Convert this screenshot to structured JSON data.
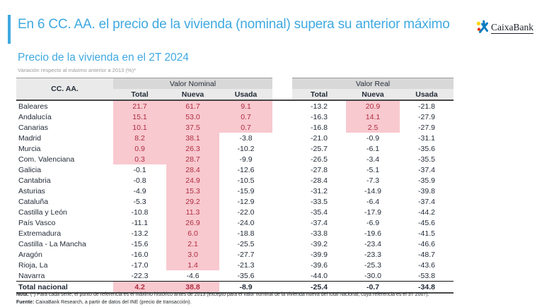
{
  "header": {
    "title": "En 6 CC. AA. el precio de la vivienda (nominal) supera su anterior máximo",
    "brand": "CaixaBank"
  },
  "subtitle": "Precio de la vivienda en el 2T 2024",
  "caption": "Variación respecto al máximo anterior a 2013 (%)*",
  "table": {
    "corner_header": "CC. AA.",
    "groups": [
      {
        "label": "Valor Nominal",
        "columns": [
          "Total",
          "Nueva",
          "Usada"
        ]
      },
      {
        "label": "Valor Real",
        "columns": [
          "Total",
          "Nueva",
          "Usada"
        ]
      }
    ],
    "rows": [
      {
        "label": "Baleares",
        "nominal": [
          "21.7",
          "61.7",
          "9.1"
        ],
        "real": [
          "-13.2",
          "20.9",
          "-21.8"
        ]
      },
      {
        "label": "Andalucía",
        "nominal": [
          "15.1",
          "53.0",
          "0.7"
        ],
        "real": [
          "-16.3",
          "14.1",
          "-27.9"
        ]
      },
      {
        "label": "Canarias",
        "nominal": [
          "10.1",
          "37.5",
          "0.7"
        ],
        "real": [
          "-16.8",
          "2.5",
          "-27.9"
        ]
      },
      {
        "label": "Madrid",
        "nominal": [
          "8.2",
          "38.1",
          "-3.8"
        ],
        "real": [
          "-21.0",
          "-0.9",
          "-31.1"
        ]
      },
      {
        "label": "Murcia",
        "nominal": [
          "0.9",
          "26.3",
          "-10.2"
        ],
        "real": [
          "-25.7",
          "-6.1",
          "-35.6"
        ]
      },
      {
        "label": "Com. Valenciana",
        "nominal": [
          "0.3",
          "28.7",
          "-9.9"
        ],
        "real": [
          "-26.5",
          "-3.4",
          "-35.5"
        ]
      },
      {
        "label": "Galicia",
        "nominal": [
          "-0.1",
          "28.4",
          "-12.6"
        ],
        "real": [
          "-27.8",
          "-5.1",
          "-37.4"
        ]
      },
      {
        "label": "Cantabria",
        "nominal": [
          "-0.8",
          "24.9",
          "-10.5"
        ],
        "real": [
          "-28.4",
          "-7.3",
          "-35.9"
        ]
      },
      {
        "label": "Asturias",
        "nominal": [
          "-4.9",
          "15.3",
          "-15.9"
        ],
        "real": [
          "-31.2",
          "-14.9",
          "-39.8"
        ]
      },
      {
        "label": "Cataluña",
        "nominal": [
          "-5.3",
          "29.2",
          "-12.9"
        ],
        "real": [
          "-33.5",
          "-6.4",
          "-37.4"
        ]
      },
      {
        "label": "Castilla y León",
        "nominal": [
          "-10.8",
          "11.3",
          "-22.0"
        ],
        "real": [
          "-35.4",
          "-17.9",
          "-44.2"
        ]
      },
      {
        "label": "País Vasco",
        "nominal": [
          "-11.1",
          "26.9",
          "-24.0"
        ],
        "real": [
          "-37.4",
          "-6.9",
          "-45.6"
        ]
      },
      {
        "label": "Extremadura",
        "nominal": [
          "-13.2",
          "6.0",
          "-18.8"
        ],
        "real": [
          "-33.8",
          "-19.6",
          "-41.5"
        ]
      },
      {
        "label": "Castilla - La Mancha",
        "nominal": [
          "-15.6",
          "2.1",
          "-25.5"
        ],
        "real": [
          "-39.2",
          "-23.4",
          "-46.6"
        ]
      },
      {
        "label": "Aragón",
        "nominal": [
          "-16.0",
          "3.0",
          "-27.7"
        ],
        "real": [
          "-39.9",
          "-23.3",
          "-48.7"
        ]
      },
      {
        "label": "Rioja, La",
        "nominal": [
          "-17.0",
          "1.4",
          "-21.3"
        ],
        "real": [
          "-39.6",
          "-25.3",
          "-43.6"
        ]
      },
      {
        "label": "Navarra",
        "nominal": [
          "-22.3",
          "-4.6",
          "-35.6"
        ],
        "real": [
          "-44.0",
          "-30.0",
          "-53.8"
        ]
      }
    ],
    "total_row": {
      "label": "Total nacional",
      "nominal": [
        "4.2",
        "38.8",
        "-8.9"
      ],
      "real": [
        "-25.4",
        "-0.7",
        "-34.8"
      ]
    },
    "highlight_rule": "positive values shown on pink background with dark red text"
  },
  "notes": {
    "note_label": "Nota:",
    "note_text": " (*) Para cada serie, el punto de referencia es el máximo histórico antes de 2013 (excepto para el valor nominal de la vivienda nueva del total nacional, cuya referencia es el 3T 2007).",
    "source_label": "Fuente:",
    "source_text": " CaixaBank Research, a partir de datos del INE (precio de transacción)."
  },
  "colors": {
    "accent_blue": "#3FA9E1",
    "highlight_bg": "#F8C9CF",
    "highlight_text": "#B02C41",
    "header_band": "#D8D8D8",
    "header_subband": "#EAEAEA",
    "star_blue": "#0B7DC2",
    "star_yellow": "#FFD500",
    "star_red": "#E63312"
  }
}
